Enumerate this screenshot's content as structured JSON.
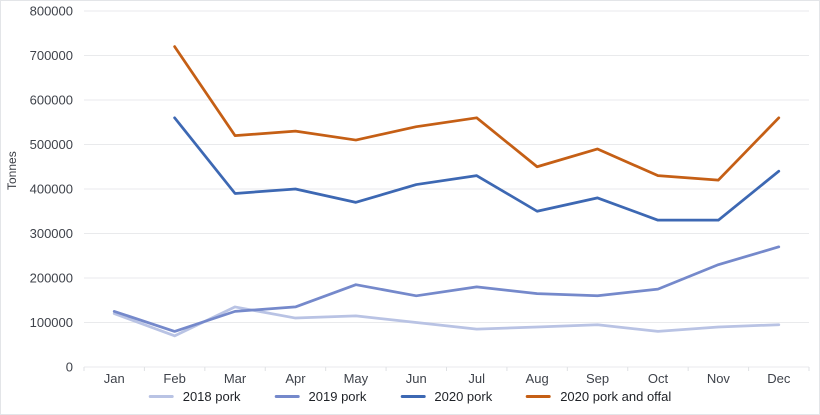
{
  "chart": {
    "y_axis_title": "Tonnes"
  },
  "chart_data": {
    "type": "line",
    "title": "",
    "xlabel": "",
    "ylabel": "Tonnes",
    "categories": [
      "Jan",
      "Feb",
      "Mar",
      "Apr",
      "May",
      "Jun",
      "Jul",
      "Aug",
      "Sep",
      "Oct",
      "Nov",
      "Dec"
    ],
    "series": [
      {
        "name": "2018 pork",
        "color": "#b9c3e4",
        "values": [
          120000,
          70000,
          135000,
          110000,
          115000,
          100000,
          85000,
          90000,
          95000,
          80000,
          90000,
          95000
        ]
      },
      {
        "name": "2019 pork",
        "color": "#7589cb",
        "values": [
          125000,
          80000,
          125000,
          135000,
          185000,
          160000,
          180000,
          165000,
          160000,
          175000,
          230000,
          270000
        ]
      },
      {
        "name": "2020 pork",
        "color": "#3d68b3",
        "values": [
          null,
          560000,
          390000,
          400000,
          370000,
          410000,
          430000,
          350000,
          380000,
          330000,
          330000,
          440000
        ]
      },
      {
        "name": "2020 pork and offal",
        "color": "#c55f15",
        "values": [
          null,
          720000,
          520000,
          530000,
          510000,
          540000,
          560000,
          450000,
          490000,
          430000,
          420000,
          560000
        ]
      }
    ],
    "ylim": [
      0,
      800000
    ],
    "ytick_step": 100000,
    "grid": true,
    "legend_position": "bottom"
  },
  "style": {
    "gridline_color": "#e9eaec",
    "tick_color": "#dfe1e4",
    "axis_label_color": "#3f434b"
  }
}
